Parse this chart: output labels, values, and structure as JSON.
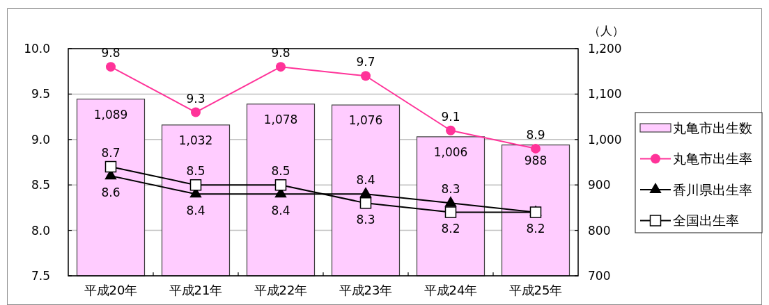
{
  "chart_data": {
    "type": "bar",
    "categories": [
      "平成20年",
      "平成21年",
      "平成22年",
      "平成23年",
      "平成24年",
      "平成25年"
    ],
    "series": [
      {
        "name": "丸亀市出生数",
        "axis": "y2",
        "color": "#ffccff",
        "values": [
          1089,
          1032,
          1078,
          1076,
          1006,
          988
        ],
        "value_labels": [
          "1,089",
          "1,032",
          "1,078",
          "1,076",
          "1,006",
          "988"
        ]
      },
      {
        "name": "丸亀市出生率",
        "type": "line",
        "marker": "circle",
        "color": "#ff3399",
        "values": [
          9.8,
          9.3,
          9.8,
          9.7,
          9.1,
          8.9
        ],
        "value_labels": [
          "9.8",
          "9.3",
          "9.8",
          "9.7",
          "9.1",
          "8.9"
        ]
      },
      {
        "name": "香川県出生率",
        "type": "line",
        "marker": "triangle",
        "color": "#000000",
        "values": [
          8.6,
          8.4,
          8.4,
          8.4,
          8.3,
          8.2
        ],
        "value_labels": [
          "8.6",
          "8.4",
          "8.4",
          "8.4",
          "8.3",
          null
        ]
      },
      {
        "name": "全国出生率",
        "type": "line",
        "marker": "square",
        "color": "#000000",
        "values": [
          8.7,
          8.5,
          8.5,
          8.3,
          8.2,
          8.2
        ],
        "value_labels": [
          "8.7",
          "8.5",
          "8.5",
          "8.3",
          "8.2",
          "8.2"
        ]
      }
    ],
    "ylim": [
      7.5,
      10
    ],
    "yticks": [
      7.5,
      {
        "value": 8,
        "label": "8.0"
      },
      8.5,
      {
        "value": 9,
        "label": "9.0"
      },
      9.5,
      {
        "value": 10,
        "label": "10.0"
      }
    ],
    "y2lim": [
      700,
      1200
    ],
    "y2ticks": [
      700,
      800,
      900,
      {
        "value": 1000,
        "label": "1,000"
      },
      {
        "value": 1100,
        "label": "1,100"
      },
      {
        "value": 1200,
        "label": "1,200"
      }
    ],
    "y2label": "（人）",
    "grid": "y",
    "legend": "right"
  }
}
